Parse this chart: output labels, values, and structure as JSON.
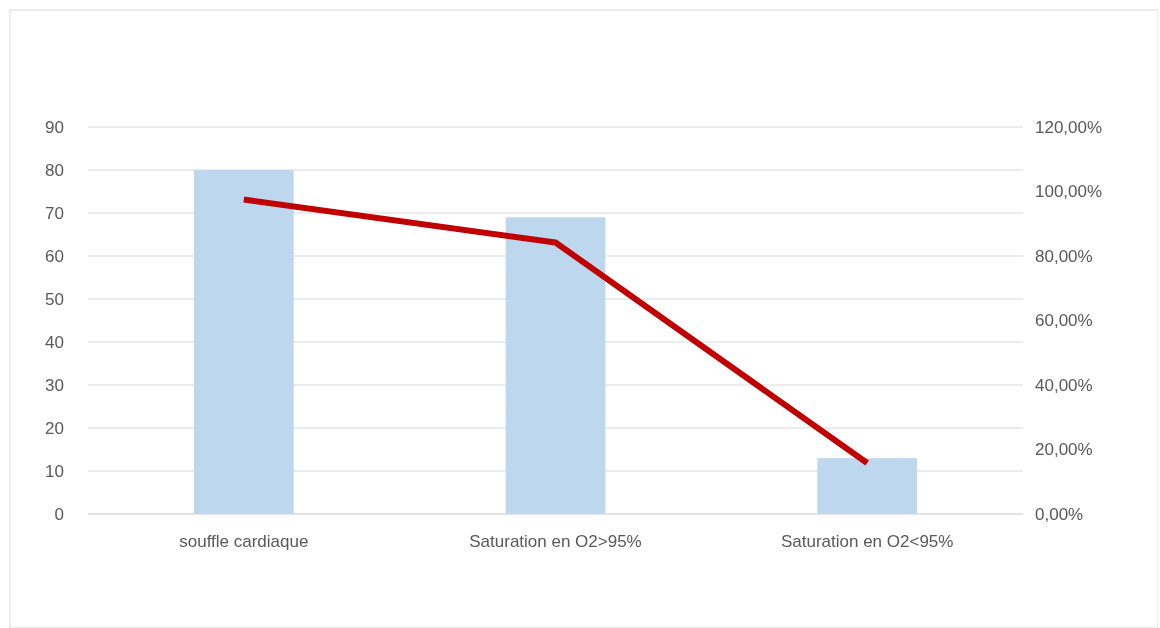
{
  "chart_data": {
    "type": "bar",
    "categories": [
      "souffle cardiaque",
      "Saturation en O2>95%",
      "Saturation en O2<95%"
    ],
    "series": [
      {
        "type": "bar",
        "color": "#bdd7ee",
        "values": [
          80,
          69,
          13
        ]
      },
      {
        "type": "line",
        "axis": "y2",
        "color": "#c00000",
        "values": [
          97.5,
          84.2,
          15.8
        ]
      }
    ],
    "ylim": [
      0,
      90
    ],
    "yticks": [
      0,
      10,
      20,
      30,
      40,
      50,
      60,
      70,
      80,
      90
    ],
    "y2lim": [
      0,
      120
    ],
    "y2ticks": [
      {
        "value": 0,
        "label": "0,00%"
      },
      {
        "value": 20,
        "label": "20,00%"
      },
      {
        "value": 40,
        "label": "40,00%"
      },
      {
        "value": 60,
        "label": "60,00%"
      },
      {
        "value": 80,
        "label": "80,00%"
      },
      {
        "value": 100,
        "label": "100,00%"
      },
      {
        "value": 120,
        "label": "120,00%"
      }
    ],
    "grid": "y",
    "marker": "none",
    "line_style": "solid"
  }
}
